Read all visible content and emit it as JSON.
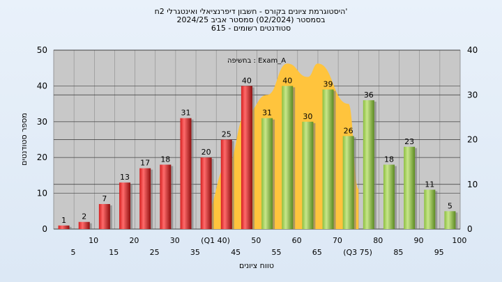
{
  "chart_data": {
    "type": "bar",
    "title_lines": [
      "היסטוגרמת ציונים בקורס - חשבון דיפרנציאלי ואינטגרלי 2ח'",
      "בסמסטר  (02/2024)  סמסטר אביב 2024/25",
      "סטודנטים רשומים - 615"
    ],
    "xlabel": "טווח ציונים",
    "ylabel": "מספר סטודנטים",
    "annotation": "בחשיפה : Exam_A",
    "categories": [
      "5",
      "10",
      "15",
      "20",
      "25",
      "30",
      "35",
      "(Q1 40)",
      "45",
      "50",
      "55",
      "60",
      "65",
      "70",
      "(Q3 75)",
      "80",
      "85",
      "90",
      "95",
      "100"
    ],
    "values": [
      1,
      2,
      7,
      13,
      17,
      18,
      31,
      20,
      25,
      40,
      31,
      40,
      30,
      39,
      26,
      36,
      18,
      23,
      11,
      5
    ],
    "bar_colors": [
      "red",
      "red",
      "red",
      "red",
      "red",
      "red",
      "red",
      "red",
      "red",
      "red",
      "green",
      "green",
      "green",
      "green",
      "green",
      "green",
      "green",
      "green",
      "green",
      "green"
    ],
    "ylim": [
      0,
      50
    ],
    "yticks": [
      0,
      10,
      20,
      30,
      40,
      50
    ],
    "y2lim": [
      0,
      40
    ],
    "y2ticks": [
      0,
      10,
      20,
      30,
      40
    ],
    "curve_y2": [
      4,
      14,
      26,
      30,
      37,
      34,
      37,
      28,
      9
    ],
    "curve_x_categories": [
      7,
      8,
      9,
      10,
      11,
      12,
      12.5,
      14,
      14.5
    ],
    "colors": {
      "red": "#d42020",
      "green": "#8cbf3f",
      "curve": "#ffc43d"
    },
    "grid": true
  }
}
